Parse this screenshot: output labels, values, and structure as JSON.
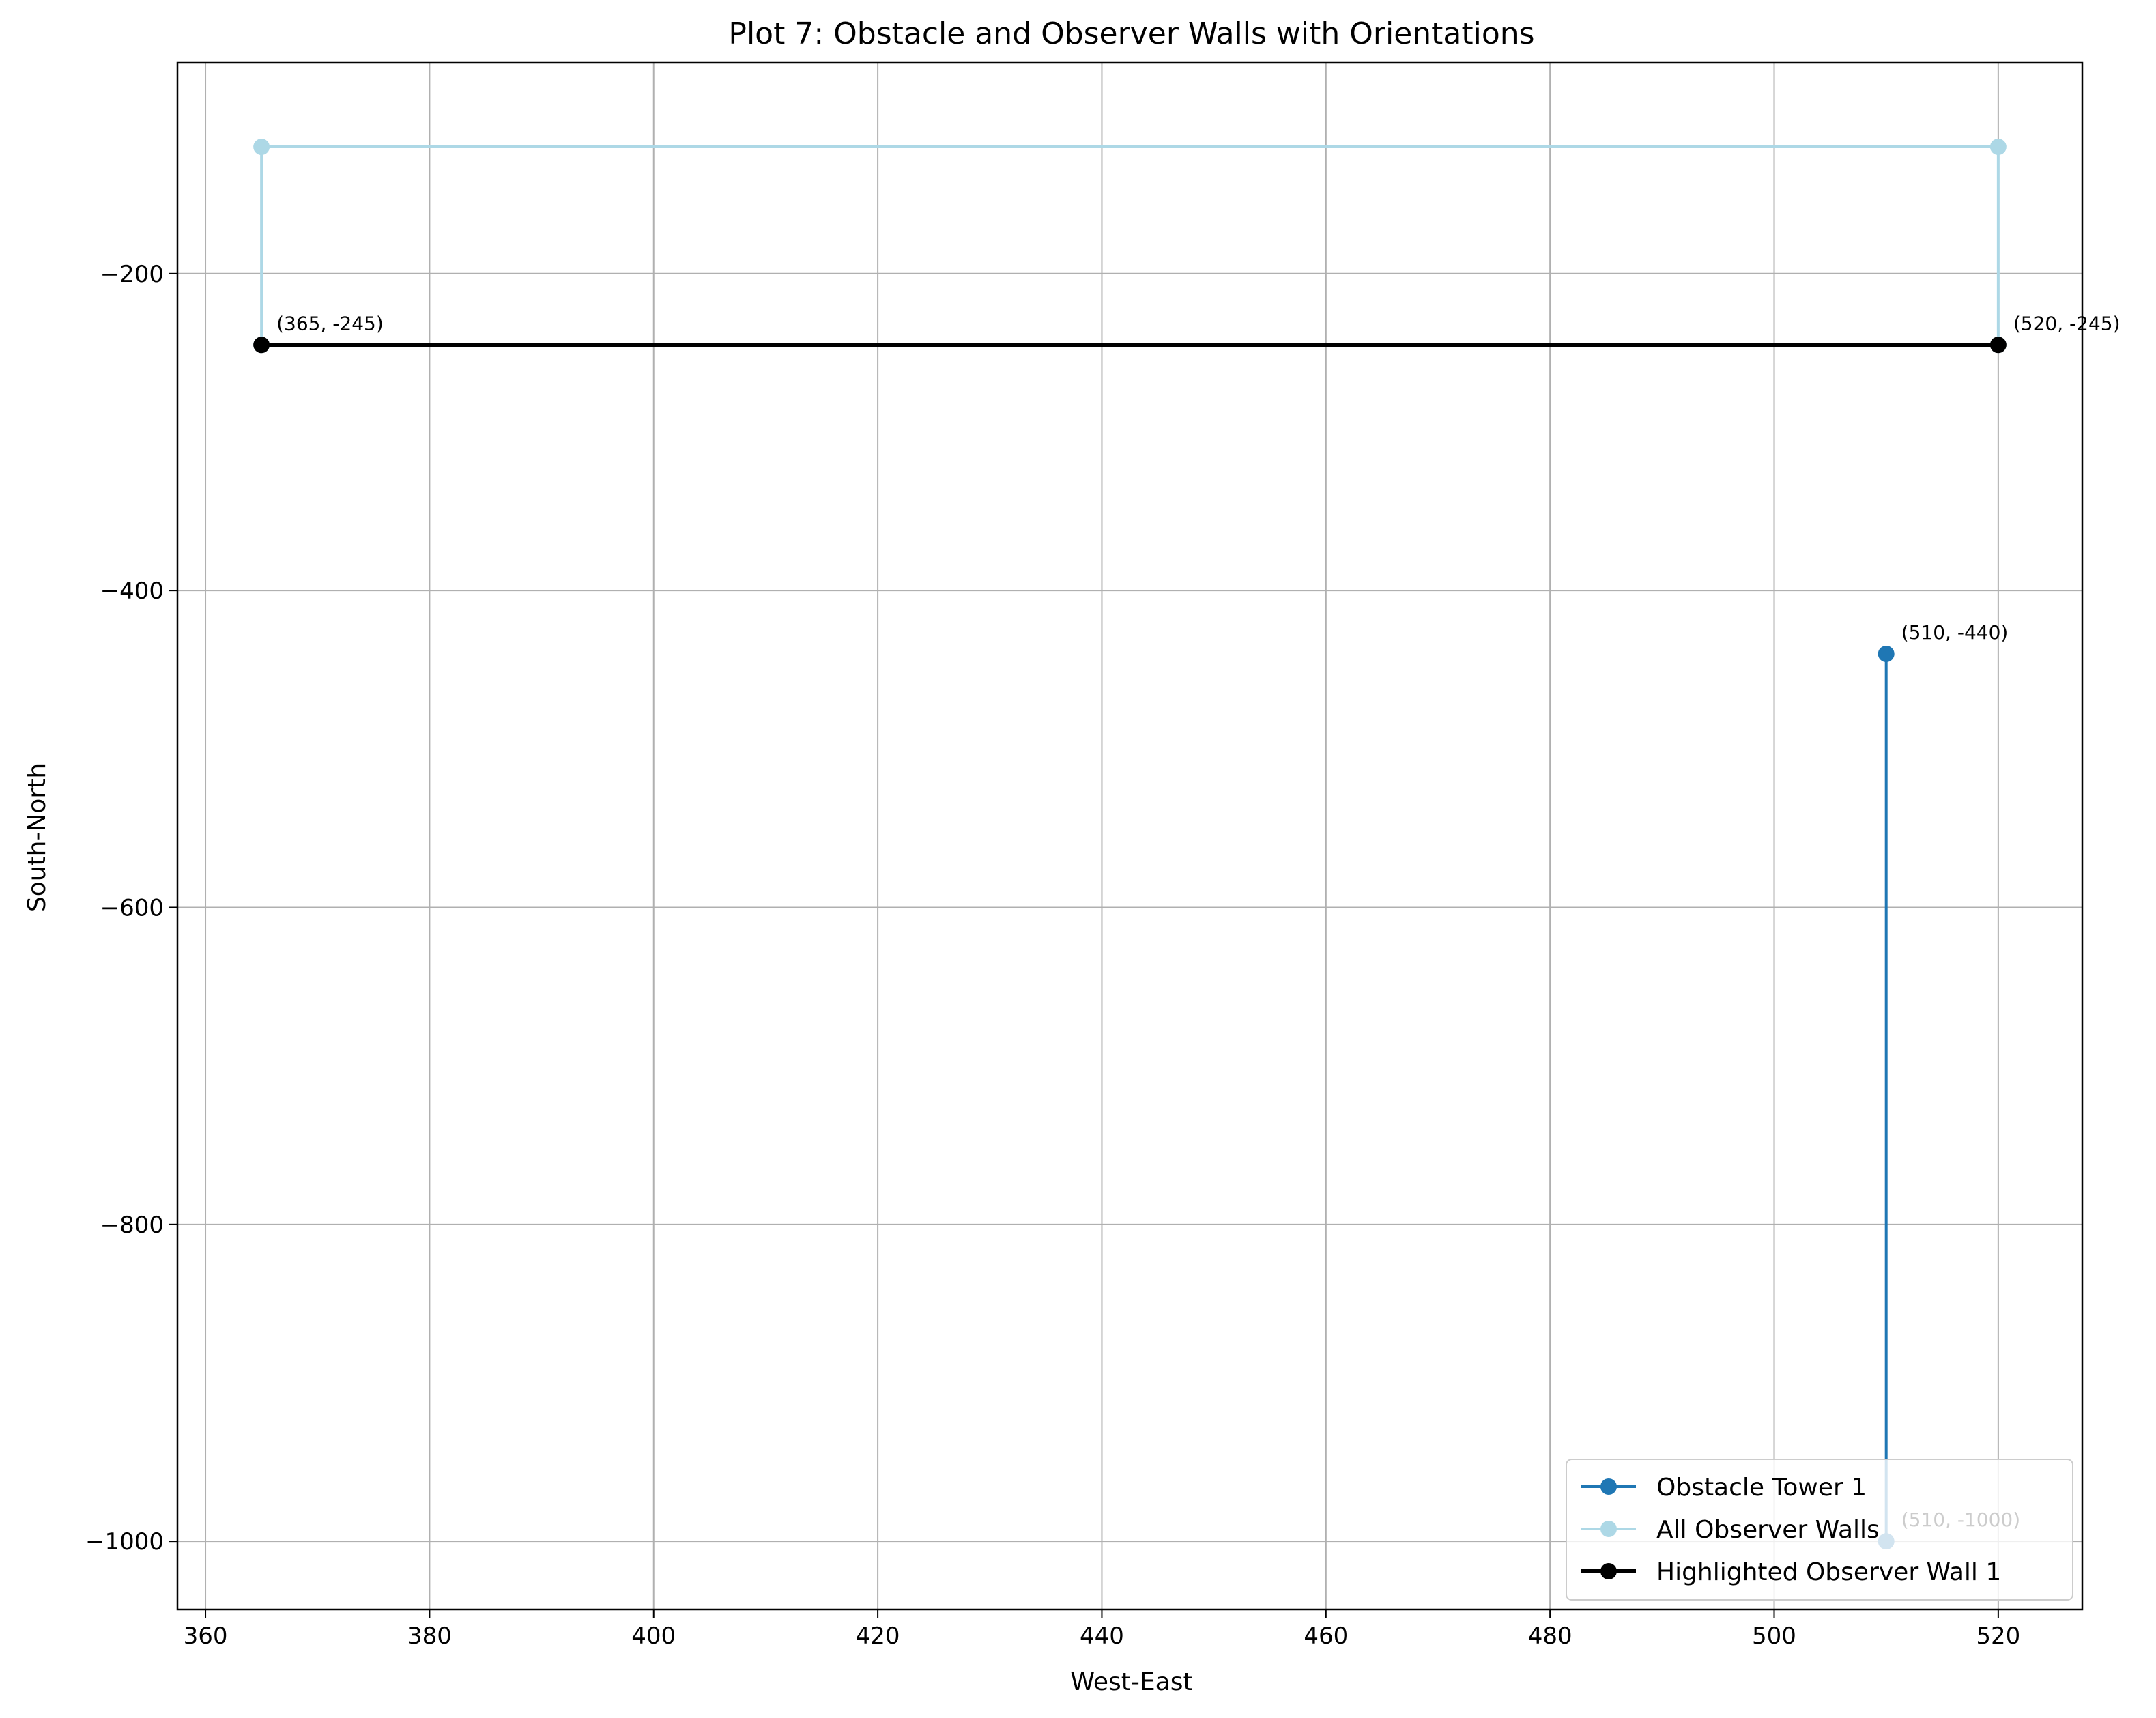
{
  "chart_data": {
    "type": "line",
    "title": "Plot 7: Obstacle and Observer Walls with Orientations",
    "xlabel": "West-East",
    "ylabel": "South-North",
    "xlim": [
      357.5,
      527.5
    ],
    "ylim": [
      -1043,
      -67
    ],
    "xticks": [
      360,
      380,
      400,
      420,
      440,
      460,
      480,
      500,
      520
    ],
    "yticks": [
      -200,
      -400,
      -600,
      -800,
      -1000
    ],
    "grid": true,
    "legend_position": "lower-right",
    "series": [
      {
        "name": "Obstacle Tower 1",
        "color": "#1f77b4",
        "linewidth": 4,
        "points": [
          [
            510,
            -440
          ],
          [
            510,
            -1000
          ]
        ]
      },
      {
        "name": "All Observer Walls",
        "color": "#add8e6",
        "linewidth": 4,
        "points": [
          [
            365,
            -245
          ],
          [
            365,
            -120
          ],
          [
            520,
            -120
          ],
          [
            520,
            -245
          ]
        ]
      },
      {
        "name": "Highlighted Observer Wall 1",
        "color": "#000000",
        "linewidth": 6,
        "points": [
          [
            365,
            -245
          ],
          [
            520,
            -245
          ]
        ]
      }
    ],
    "annotations": [
      {
        "text": "(365, -245)",
        "x": 365,
        "y": -245
      },
      {
        "text": "(520, -245)",
        "x": 520,
        "y": -245
      },
      {
        "text": "(510, -440)",
        "x": 510,
        "y": -440
      },
      {
        "text": "(510, -1000)",
        "x": 510,
        "y": -1000
      }
    ]
  }
}
